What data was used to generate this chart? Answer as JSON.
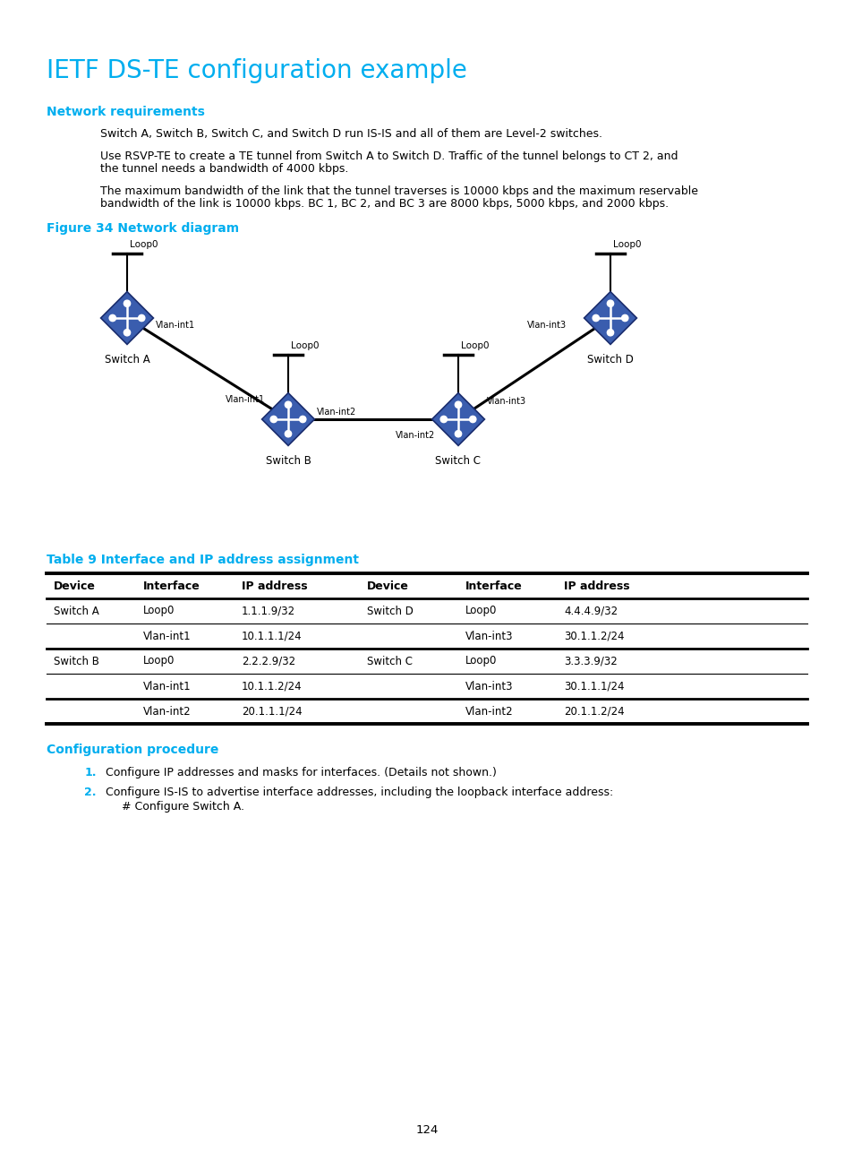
{
  "title": "IETF DS-TE configuration example",
  "title_color": "#00AEEF",
  "title_fontsize": 20,
  "bg_color": "#FFFFFF",
  "section_color": "#00AEEF",
  "section_fontsize": 10,
  "body_fontsize": 9,
  "small_fontsize": 7.5,
  "network_req_title": "Network requirements",
  "para1": "Switch A, Switch B, Switch C, and Switch D run IS-IS and all of them are Level-2 switches.",
  "para2a": "Use RSVP-TE to create a TE tunnel from Switch A to Switch D. Traffic of the tunnel belongs to CT 2, and",
  "para2b": "the tunnel needs a bandwidth of 4000 kbps.",
  "para3a": "The maximum bandwidth of the link that the tunnel traverses is 10000 kbps and the maximum reservable",
  "para3b": "bandwidth of the link is 10000 kbps. BC 1, BC 2, and BC 3 are 8000 kbps, 5000 kbps, and 2000 kbps.",
  "figure_caption": "Figure 34 Network diagram",
  "table_caption": "Table 9 Interface and IP address assignment",
  "table_headers": [
    "Device",
    "Interface",
    "IP address",
    "Device",
    "Interface",
    "IP address"
  ],
  "table_rows": [
    [
      "Switch A",
      "Loop0",
      "1.1.1.9/32",
      "Switch D",
      "Loop0",
      "4.4.4.9/32"
    ],
    [
      "",
      "Vlan-int1",
      "10.1.1.1/24",
      "",
      "Vlan-int3",
      "30.1.1.2/24"
    ],
    [
      "Switch B",
      "Loop0",
      "2.2.2.9/32",
      "Switch C",
      "Loop0",
      "3.3.3.9/32"
    ],
    [
      "",
      "Vlan-int1",
      "10.1.1.2/24",
      "",
      "Vlan-int3",
      "30.1.1.1/24"
    ],
    [
      "",
      "Vlan-int2",
      "20.1.1.1/24",
      "",
      "Vlan-int2",
      "20.1.1.2/24"
    ]
  ],
  "config_proc_title": "Configuration procedure",
  "config_item1": "Configure IP addresses and masks for interfaces. (Details not shown.)",
  "config_item2a": "Configure IS-IS to advertise interface addresses, including the loopback interface address:",
  "config_item2b": "# Configure Switch A.",
  "page_number": "124",
  "sw_color": "#3A5DAE",
  "sw_edge_color": "#1A2D6E",
  "line_color": "#000000"
}
